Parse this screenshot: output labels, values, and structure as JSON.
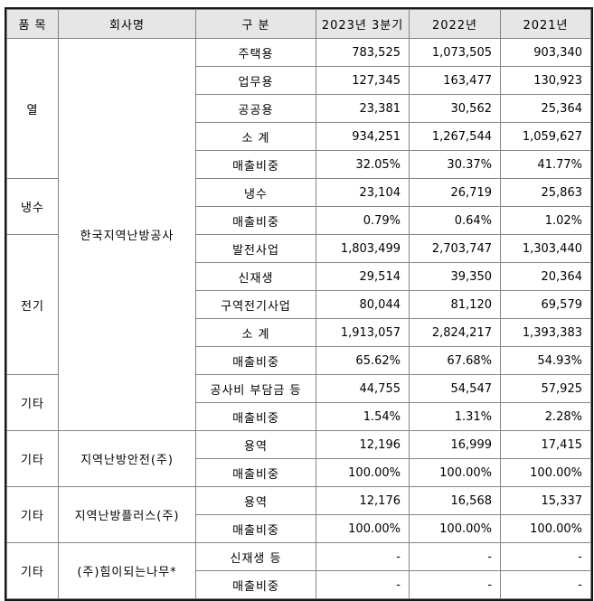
{
  "header": {
    "col_item": "품 목",
    "col_company": "회사명",
    "col_category": "구 분",
    "col_q3_2023": "2023년 3분기",
    "col_2022": "2022년",
    "col_2021": "2021년"
  },
  "colors": {
    "header_bg": "#e6e6e6",
    "inner_border": "#858585",
    "outer_border": "#161616",
    "text": "#000000"
  },
  "rows": [
    {
      "item": "열",
      "company": "한국지역난방공사",
      "category": "주택용",
      "q3_2023": "783,525",
      "y2022": "1,073,505",
      "y2021": "903,340"
    },
    {
      "category": "업무용",
      "q3_2023": "127,345",
      "y2022": "163,477",
      "y2021": "130,923"
    },
    {
      "category": "공공용",
      "q3_2023": "23,381",
      "y2022": "30,562",
      "y2021": "25,364"
    },
    {
      "category": "소 계",
      "q3_2023": "934,251",
      "y2022": "1,267,544",
      "y2021": "1,059,627"
    },
    {
      "category": "매출비중",
      "q3_2023": "32.05%",
      "y2022": "30.37%",
      "y2021": "41.77%"
    },
    {
      "item": "냉수",
      "category": "냉수",
      "q3_2023": "23,104",
      "y2022": "26,719",
      "y2021": "25,863"
    },
    {
      "category": "매출비중",
      "q3_2023": "0.79%",
      "y2022": "0.64%",
      "y2021": "1.02%"
    },
    {
      "item": "전기",
      "category": "발전사업",
      "q3_2023": "1,803,499",
      "y2022": "2,703,747",
      "y2021": "1,303,440"
    },
    {
      "category": "신재생",
      "q3_2023": "29,514",
      "y2022": "39,350",
      "y2021": "20,364"
    },
    {
      "category": "구역전기사업",
      "q3_2023": "80,044",
      "y2022": "81,120",
      "y2021": "69,579"
    },
    {
      "category": "소 계",
      "q3_2023": "1,913,057",
      "y2022": "2,824,217",
      "y2021": "1,393,383"
    },
    {
      "category": "매출비중",
      "q3_2023": "65.62%",
      "y2022": "67.68%",
      "y2021": "54.93%"
    },
    {
      "item": "기타",
      "category": "공사비 부담금 등",
      "q3_2023": "44,755",
      "y2022": "54,547",
      "y2021": "57,925"
    },
    {
      "category": "매출비중",
      "q3_2023": "1.54%",
      "y2022": "1.31%",
      "y2021": "2.28%"
    },
    {
      "item": "기타",
      "company": "지역난방안전(주)",
      "category": "용역",
      "q3_2023": "12,196",
      "y2022": "16,999",
      "y2021": "17,415"
    },
    {
      "category": "매출비중",
      "q3_2023": "100.00%",
      "y2022": "100.00%",
      "y2021": "100.00%"
    },
    {
      "item": "기타",
      "company": "지역난방플러스(주)",
      "category": "용역",
      "q3_2023": "12,176",
      "y2022": "16,568",
      "y2021": "15,337"
    },
    {
      "category": "매출비중",
      "q3_2023": "100.00%",
      "y2022": "100.00%",
      "y2021": "100.00%"
    },
    {
      "item": "기타",
      "company": "(주)힘이되는나무*",
      "category": "신재생 등",
      "q3_2023": "-",
      "y2022": "-",
      "y2021": "-"
    },
    {
      "category": "매출비중",
      "q3_2023": "-",
      "y2022": "-",
      "y2021": "-"
    }
  ]
}
